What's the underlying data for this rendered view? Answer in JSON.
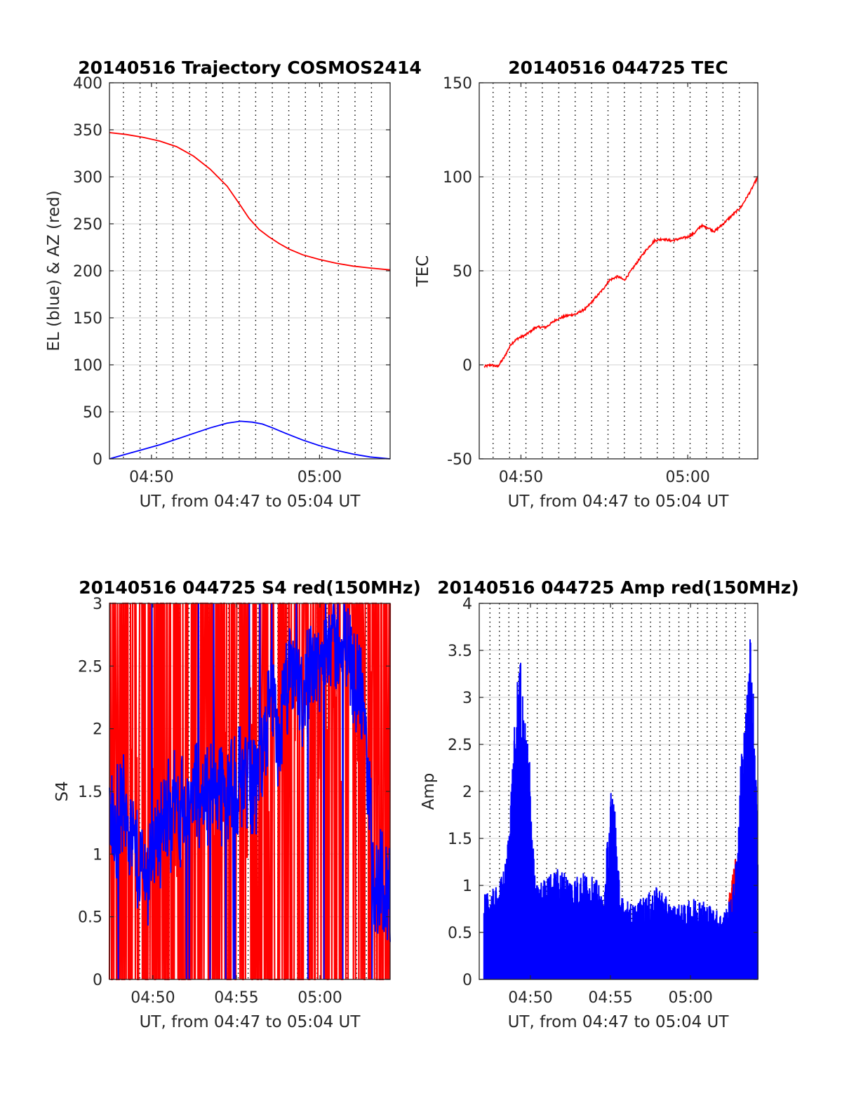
{
  "figure": {
    "colors": {
      "red": "#ff0000",
      "blue": "#0000ff",
      "grid": "#000000",
      "axis": "#262626"
    }
  },
  "chart_data": [
    {
      "id": "trajectory",
      "type": "line",
      "title": "20140516 Trajectory COSMOS2414",
      "xlabel": "UT, from 04:47 to 05:04 UT",
      "ylabel": "EL (blue) & AZ (red)",
      "x_unit": "minutes after 04:00 UT",
      "xlim": [
        47.5,
        64.2
      ],
      "ylim": [
        0,
        400
      ],
      "yticks": [
        0,
        50,
        100,
        150,
        200,
        250,
        300,
        350,
        400
      ],
      "xticks": [
        50,
        60
      ],
      "xtick_labels": [
        "04:50",
        "05:00"
      ],
      "grid_y": [
        50,
        100,
        150,
        200,
        250,
        300,
        350
      ],
      "grid_x_dotted": [
        48.33,
        49.32,
        50.3,
        51.28,
        52.27,
        53.25,
        54.24,
        55.22,
        56.2,
        57.19,
        58.17,
        59.16,
        60.14,
        61.12,
        62.11,
        63.09
      ],
      "series": [
        {
          "color": "#ff0000",
          "x": [
            47.5,
            48.5,
            49.5,
            50.5,
            51.5,
            52.5,
            53.5,
            54.5,
            55.2,
            55.8,
            56.4,
            57.0,
            57.6,
            58.2,
            59.0,
            60.0,
            61.0,
            62.0,
            63.0,
            64.2
          ],
          "values": [
            347,
            345,
            342,
            338,
            332,
            322,
            308,
            290,
            272,
            256,
            244,
            236,
            229,
            223,
            217,
            212,
            208,
            205,
            203,
            201
          ]
        },
        {
          "color": "#0000ff",
          "x": [
            47.5,
            48.5,
            49.5,
            50.5,
            51.5,
            52.5,
            53.5,
            54.5,
            55.3,
            56.0,
            56.6,
            57.2,
            58.0,
            59.0,
            60.0,
            61.0,
            62.0,
            63.0,
            64.2
          ],
          "values": [
            0,
            5,
            10,
            15,
            21,
            27,
            33,
            38,
            40,
            39,
            37,
            33,
            27,
            20,
            14,
            9,
            5,
            2,
            0
          ]
        }
      ]
    },
    {
      "id": "tec",
      "type": "line",
      "title": "20140516 044725 TEC",
      "xlabel": "UT, from 04:47 to 05:04 UT",
      "ylabel": "TEC",
      "x_unit": "minutes after 04:00 UT",
      "xlim": [
        47.5,
        64.2
      ],
      "ylim": [
        -50,
        150
      ],
      "yticks": [
        -50,
        0,
        50,
        100,
        150
      ],
      "xticks": [
        50,
        60
      ],
      "xtick_labels": [
        "04:50",
        "05:00"
      ],
      "grid_y": [
        0,
        50,
        100
      ],
      "grid_x_dotted": [
        48.33,
        49.32,
        50.3,
        51.28,
        52.27,
        53.25,
        54.24,
        55.22,
        56.2,
        57.19,
        58.17,
        59.16,
        60.14,
        61.12,
        62.11,
        63.09
      ],
      "series": [
        {
          "color": "#ff0000",
          "x": [
            47.8,
            48.2,
            48.6,
            49.0,
            49.4,
            49.8,
            50.3,
            50.9,
            51.5,
            52.1,
            52.7,
            53.3,
            53.9,
            54.4,
            54.9,
            55.3,
            55.8,
            56.2,
            56.6,
            57.0,
            57.5,
            58.0,
            58.5,
            59.0,
            59.5,
            60.0,
            60.4,
            60.8,
            61.2,
            61.6,
            62.0,
            62.6,
            63.2,
            63.8,
            64.2
          ],
          "values": [
            -1,
            0,
            -1,
            4,
            11,
            14,
            16,
            20,
            20,
            24,
            26,
            27,
            30,
            35,
            40,
            45,
            47,
            45,
            50,
            55,
            61,
            66,
            67,
            66,
            67,
            68,
            70,
            74,
            73,
            71,
            74,
            79,
            84,
            93,
            100
          ]
        }
      ]
    },
    {
      "id": "s4",
      "type": "line",
      "title": "20140516 044725 S4 red(150MHz)",
      "xlabel": "UT, from 04:47 to 05:04 UT",
      "ylabel": "S4",
      "x_unit": "minutes after 04:00 UT",
      "xlim": [
        47.4,
        64.2
      ],
      "ylim": [
        0,
        3
      ],
      "yticks": [
        0,
        0.5,
        1,
        1.5,
        2,
        2.5,
        3
      ],
      "ytick_labels": [
        "0",
        "0.5",
        "1",
        "1.5",
        "2",
        "2.5",
        "3"
      ],
      "xticks": [
        50,
        55,
        60
      ],
      "xtick_labels": [
        "04:50",
        "04:55",
        "05:00"
      ],
      "grid_y": [
        0.5,
        1,
        1.5,
        2,
        2.5
      ],
      "grid_x_dotted": [
        48.03,
        48.62,
        49.21,
        49.8,
        50.39,
        50.98,
        51.57,
        52.16,
        52.75,
        53.34,
        53.93,
        54.52,
        55.11,
        55.7,
        56.29,
        56.88,
        57.47,
        58.06,
        58.65,
        59.24,
        59.83,
        60.42,
        61.01,
        61.6,
        62.19,
        62.78,
        63.37
      ],
      "series": [
        {
          "color": "#ff0000",
          "x": [
            47.4,
            48.4,
            49.4,
            50.4,
            51.4,
            52.4,
            53.4,
            54.4,
            55.4,
            56.4,
            57.4,
            58.4,
            59.4,
            60.4,
            61.4,
            62.4,
            63.4,
            64.2
          ],
          "values": [
            1.5,
            1.5,
            1.4,
            1.45,
            1.5,
            1.5,
            1.5,
            1.5,
            1.6,
            1.8,
            2.0,
            2.1,
            2.2,
            2.3,
            2.2,
            2.1,
            2.0,
            2.0
          ]
        },
        {
          "color": "#0000ff",
          "x": [
            47.4,
            47.7,
            48.0,
            48.4,
            48.8,
            49.2,
            49.6,
            50.0,
            50.5,
            51.0,
            51.5,
            52.0,
            52.5,
            53.0,
            53.5,
            54.0,
            54.5,
            55.0,
            55.5,
            56.0,
            56.5,
            57.0,
            57.5,
            58.0,
            58.5,
            59.0,
            59.5,
            60.0,
            60.5,
            61.0,
            61.5,
            62.0,
            62.5,
            62.9,
            63.3,
            63.7,
            64.2
          ],
          "values": [
            1.3,
            1.2,
            1.35,
            1.4,
            1.1,
            0.9,
            0.8,
            1.1,
            1.2,
            1.35,
            1.4,
            1.3,
            1.5,
            1.45,
            1.5,
            1.6,
            1.45,
            1.5,
            1.7,
            1.55,
            1.75,
            2.2,
            1.9,
            2.3,
            2.5,
            2.2,
            2.6,
            2.45,
            2.8,
            2.65,
            2.7,
            2.5,
            2.2,
            1.6,
            0.7,
            0.8,
            0.7
          ]
        }
      ]
    },
    {
      "id": "amp",
      "type": "line",
      "title": "20140516 044725 Amp red(150MHz)",
      "xlabel": "UT, from 04:47 to 05:04 UT",
      "ylabel": "Amp",
      "x_unit": "minutes after 04:00 UT",
      "xlim": [
        46.8,
        64.2
      ],
      "ylim": [
        0,
        4
      ],
      "yticks": [
        0,
        0.5,
        1,
        1.5,
        2,
        2.5,
        3,
        3.5,
        4
      ],
      "ytick_labels": [
        "0",
        "0.5",
        "1",
        "1.5",
        "2",
        "2.5",
        "3",
        "3.5",
        "4"
      ],
      "xticks": [
        50,
        55,
        60
      ],
      "xtick_labels": [
        "04:50",
        "04:55",
        "05:00"
      ],
      "grid_y": [
        0.5,
        1,
        1.5,
        2,
        2.5,
        3,
        3.5
      ],
      "grid_x_dotted": [
        47.47,
        48.06,
        48.65,
        49.24,
        49.83,
        50.42,
        51.01,
        51.6,
        52.19,
        52.78,
        53.37,
        53.96,
        54.55,
        55.14,
        55.73,
        56.32,
        56.91,
        57.5,
        58.09,
        58.68,
        59.27,
        59.86,
        60.45,
        61.04,
        61.63,
        62.22,
        62.81,
        63.4
      ],
      "series": [
        {
          "color": "#ff0000",
          "x": [
            62.4,
            62.6,
            62.8,
            63.0,
            63.2
          ],
          "values": [
            0.9,
            1.1,
            1.3,
            1.2,
            1.0
          ]
        },
        {
          "color": "#0000ff",
          "x": [
            47.1,
            47.5,
            48.0,
            48.5,
            49.0,
            49.3,
            49.6,
            49.9,
            50.3,
            51.0,
            51.8,
            52.6,
            53.4,
            54.2,
            54.6,
            54.9,
            55.2,
            55.6,
            56.4,
            57.2,
            58.0,
            58.8,
            59.6,
            60.4,
            61.2,
            62.0,
            62.6,
            62.9,
            63.2,
            63.5,
            63.8,
            64.0,
            64.2
          ],
          "values": [
            0.9,
            0.95,
            1.0,
            1.3,
            2.7,
            3.6,
            2.8,
            2.6,
            1.0,
            1.1,
            1.2,
            1.1,
            1.15,
            1.05,
            0.8,
            1.9,
            2.2,
            0.9,
            0.8,
            0.9,
            1.0,
            0.8,
            0.8,
            0.9,
            0.8,
            0.7,
            0.9,
            1.4,
            2.6,
            2.95,
            3.95,
            2.6,
            1.9
          ]
        }
      ]
    }
  ]
}
